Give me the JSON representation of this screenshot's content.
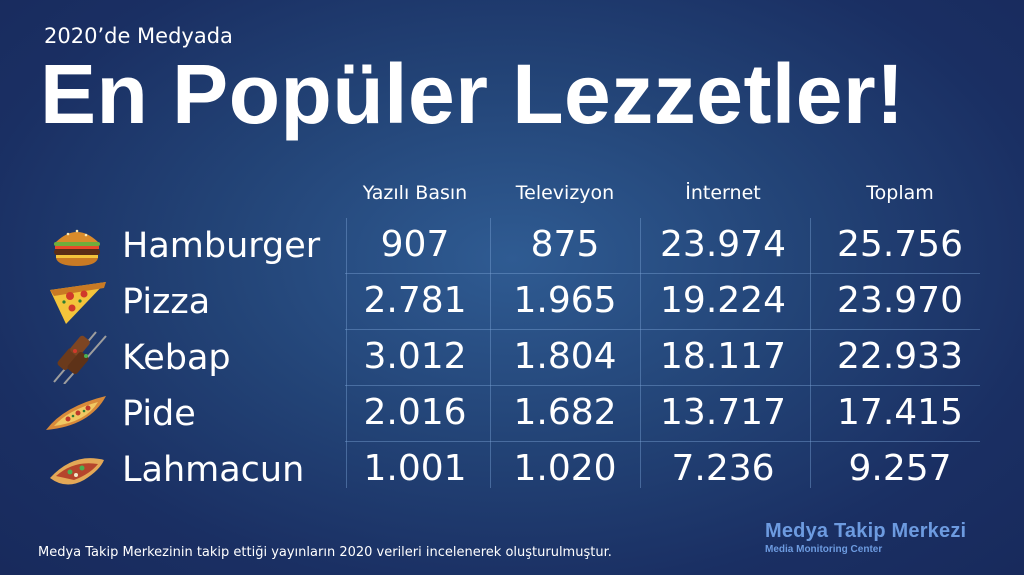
{
  "subtitle": "2020’de Medyada",
  "title": "En Popüler Lezzetler!",
  "columns": [
    "Yazılı Basın",
    "Televizyon",
    "İnternet",
    "Toplam"
  ],
  "rows": [
    {
      "name": "Hamburger",
      "icon": "hamburger-icon",
      "values": [
        "907",
        "875",
        "23.974",
        "25.756"
      ]
    },
    {
      "name": "Pizza",
      "icon": "pizza-icon",
      "values": [
        "2.781",
        "1.965",
        "19.224",
        "23.970"
      ]
    },
    {
      "name": "Kebap",
      "icon": "kebab-icon",
      "values": [
        "3.012",
        "1.804",
        "18.117",
        "22.933"
      ]
    },
    {
      "name": "Pide",
      "icon": "pide-icon",
      "values": [
        "2.016",
        "1.682",
        "13.717",
        "17.415"
      ]
    },
    {
      "name": "Lahmacun",
      "icon": "lahmacun-icon",
      "values": [
        "1.001",
        "1.020",
        "7.236",
        "9.257"
      ]
    }
  ],
  "footer_note": "Medya Takip Merkezinin takip ettiği yayınların 2020 verileri incelenerek oluşturulmuştur.",
  "brand": {
    "name": "Medya Takip Merkezi",
    "tagline": "Media Monitoring Center"
  },
  "colors": {
    "background": "#1f3a6e",
    "brand": "#6d9be0",
    "text": "#ffffff"
  }
}
